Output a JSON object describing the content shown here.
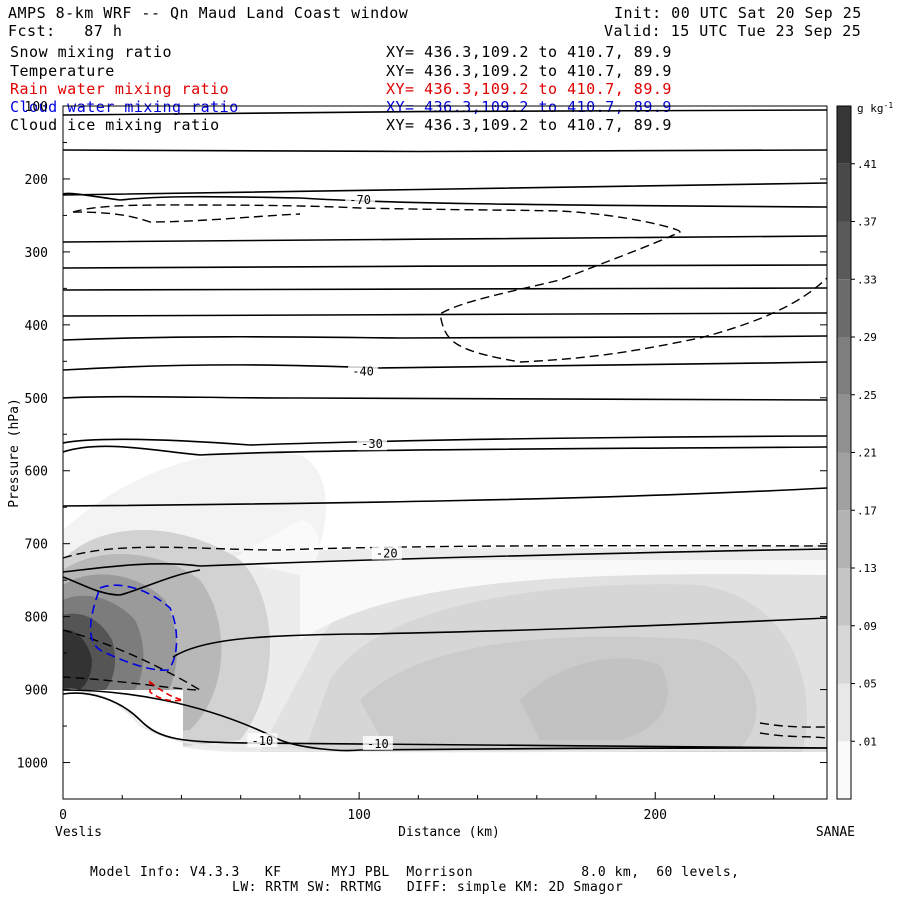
{
  "header": {
    "title": "AMPS 8-km WRF -- Qn Maud Land Coast window",
    "forecast": "Fcst:   87 h",
    "init": "Init: 00 UTC Sat 20 Sep 25",
    "valid": "Valid: 15 UTC Tue 23 Sep 25"
  },
  "legend": [
    {
      "label": "Snow mixing ratio",
      "xy": "XY= 436.3,109.2 to 410.7, 89.9",
      "color": "#000000"
    },
    {
      "label": "Temperature",
      "xy": "XY= 436.3,109.2 to 410.7, 89.9",
      "color": "#000000"
    },
    {
      "label": "Rain water mixing ratio",
      "xy": "XY= 436.3,109.2 to 410.7, 89.9",
      "color": "#e00000"
    },
    {
      "label": "Cloud water mixing ratio",
      "xy": "XY= 436.3,109.2 to 410.7, 89.9",
      "color": "#0000e0"
    },
    {
      "label": "Cloud ice mixing ratio",
      "xy": "XY= 436.3,109.2 to 410.7, 89.9",
      "color": "#000000"
    }
  ],
  "footer": {
    "line1": "Model Info: V4.3.3   KF      MYJ PBL  Morrison             8.0 km,  60 levels,",
    "line2": "LW: RRTM SW: RRTMG   DIFF: simple KM: 2D Smagor"
  },
  "chart_data": {
    "type": "contour",
    "title": "AMPS 8-km WRF -- Qn Maud Land Coast window",
    "xlabel": "Distance (km)",
    "ylabel": "Pressure (hPa)",
    "xlim": [
      0,
      258
    ],
    "ylim": [
      1050,
      100
    ],
    "x_ticks": [
      0,
      100,
      200
    ],
    "y_ticks": [
      100,
      200,
      300,
      400,
      500,
      600,
      700,
      800,
      900,
      1000
    ],
    "x_end_labels": {
      "left": "Veslis",
      "right": "SANAE"
    },
    "colorbar": {
      "unit": "g kg",
      "unit_exp": "-1",
      "ticks": [
        ".01",
        ".05",
        ".09",
        ".13",
        ".17",
        ".21",
        ".25",
        ".29",
        ".33",
        ".37",
        ".41"
      ]
    },
    "temperature_labels": [
      {
        "text": "-70",
        "x": 100,
        "p": 230
      },
      {
        "text": "-40",
        "x": 101,
        "p": 465
      },
      {
        "text": "-30",
        "x": 104,
        "p": 565
      },
      {
        "text": "-20",
        "x": 109,
        "p": 715
      },
      {
        "text": "-10",
        "x": 67,
        "p": 972
      },
      {
        "text": "-10",
        "x": 106,
        "p": 976
      }
    ],
    "isotherm_pressures_hpa": [
      100,
      150,
      200,
      237,
      282,
      310,
      350,
      375,
      420,
      450,
      465,
      500,
      537,
      565,
      600,
      645,
      700,
      760,
      820,
      880,
      950
    ]
  }
}
